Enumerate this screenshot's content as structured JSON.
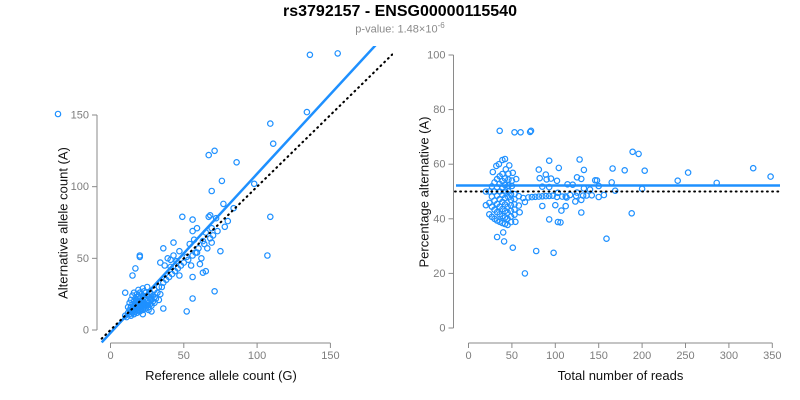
{
  "header": {
    "title": "rs3792157 - ENSG00000115540",
    "pvalue_prefix": "p-value: 1.48×10",
    "pvalue_exponent": "-6"
  },
  "colors": {
    "point_blue": "#1E90FF",
    "fit_line_blue": "#1E90FF",
    "reference_line_black": "#000000",
    "axis_line": "#8a8a8a",
    "tick_label": "#7d7d7d",
    "axis_title": "#111111",
    "subtitle_gray": "#8a8a8a",
    "title_black": "#000000"
  },
  "chart_data": [
    {
      "type": "scatter",
      "name": "allele-counts-scatter",
      "xlabel": "Reference allele count (G)",
      "ylabel": "Alternative allele count (A)",
      "xticks": [
        0,
        50,
        100,
        150
      ],
      "yticks": [
        0,
        50,
        100,
        150
      ],
      "xlim": [
        -9,
        190
      ],
      "ylim": [
        -10,
        193
      ],
      "grid": false,
      "legend": "none",
      "marker": "open-circle",
      "points_xy": [
        [
          10,
          10
        ],
        [
          11,
          9
        ],
        [
          12,
          12
        ],
        [
          12,
          16
        ],
        [
          13,
          11
        ],
        [
          13,
          14
        ],
        [
          13,
          19
        ],
        [
          14,
          10
        ],
        [
          14,
          13
        ],
        [
          14,
          16
        ],
        [
          14,
          21
        ],
        [
          15,
          12
        ],
        [
          15,
          15
        ],
        [
          15,
          18
        ],
        [
          15,
          24
        ],
        [
          16,
          11
        ],
        [
          16,
          14
        ],
        [
          16,
          17
        ],
        [
          16,
          20
        ],
        [
          16,
          26
        ],
        [
          17,
          13
        ],
        [
          17,
          16
        ],
        [
          17,
          19
        ],
        [
          17,
          22
        ],
        [
          18,
          12
        ],
        [
          18,
          15
        ],
        [
          18,
          18
        ],
        [
          18,
          21
        ],
        [
          18,
          25
        ],
        [
          19,
          14
        ],
        [
          19,
          17
        ],
        [
          19,
          20
        ],
        [
          19,
          23
        ],
        [
          19,
          28
        ],
        [
          20,
          13
        ],
        [
          20,
          16
        ],
        [
          20,
          19
        ],
        [
          20,
          22
        ],
        [
          20,
          26
        ],
        [
          21,
          15
        ],
        [
          21,
          18
        ],
        [
          21,
          21
        ],
        [
          21,
          25
        ],
        [
          22,
          11
        ],
        [
          22,
          14
        ],
        [
          22,
          17
        ],
        [
          22,
          20
        ],
        [
          22,
          24
        ],
        [
          22,
          29
        ],
        [
          23,
          16
        ],
        [
          23,
          19
        ],
        [
          23,
          23
        ],
        [
          23,
          27
        ],
        [
          24,
          15
        ],
        [
          24,
          18
        ],
        [
          24,
          22
        ],
        [
          24,
          26
        ],
        [
          25,
          17
        ],
        [
          25,
          20
        ],
        [
          25,
          24
        ],
        [
          25,
          30
        ],
        [
          26,
          14
        ],
        [
          26,
          16
        ],
        [
          26,
          19
        ],
        [
          26,
          23
        ],
        [
          27,
          18
        ],
        [
          27,
          22
        ],
        [
          27,
          26
        ],
        [
          28,
          13
        ],
        [
          28,
          17
        ],
        [
          28,
          21
        ],
        [
          28,
          25
        ],
        [
          29,
          20
        ],
        [
          29,
          24
        ],
        [
          30,
          19
        ],
        [
          30,
          23
        ],
        [
          30,
          28
        ],
        [
          31,
          22
        ],
        [
          10,
          26
        ],
        [
          15,
          38
        ],
        [
          17,
          43
        ],
        [
          20,
          51
        ],
        [
          20,
          52
        ],
        [
          32,
          26
        ],
        [
          33,
          21
        ],
        [
          33,
          30
        ],
        [
          34,
          25
        ],
        [
          34,
          47
        ],
        [
          35,
          30
        ],
        [
          36,
          15
        ],
        [
          36,
          33
        ],
        [
          36,
          57
        ],
        [
          37,
          45
        ],
        [
          38,
          35
        ],
        [
          39,
          50
        ],
        [
          40,
          37
        ],
        [
          41,
          44
        ],
        [
          41,
          49
        ],
        [
          42,
          39
        ],
        [
          43,
          52
        ],
        [
          43,
          61
        ],
        [
          44,
          41
        ],
        [
          45,
          48
        ],
        [
          46,
          43
        ],
        [
          47,
          38
        ],
        [
          47,
          55
        ],
        [
          48,
          45
        ],
        [
          49,
          79
        ],
        [
          50,
          47
        ],
        [
          52,
          13
        ],
        [
          52,
          51
        ],
        [
          53,
          49
        ],
        [
          54,
          60
        ],
        [
          55,
          45
        ],
        [
          56,
          22
        ],
        [
          56,
          37
        ],
        [
          56,
          52
        ],
        [
          56,
          69
        ],
        [
          56,
          77
        ],
        [
          57,
          63
        ],
        [
          58,
          54
        ],
        [
          59,
          54
        ],
        [
          59,
          71
        ],
        [
          60,
          57
        ],
        [
          61,
          46
        ],
        [
          62,
          50
        ],
        [
          63,
          40
        ],
        [
          63,
          62
        ],
        [
          64,
          60
        ],
        [
          65,
          41
        ],
        [
          65,
          68
        ],
        [
          66,
          57
        ],
        [
          67,
          79
        ],
        [
          67,
          122
        ],
        [
          68,
          64
        ],
        [
          68,
          80
        ],
        [
          69,
          61
        ],
        [
          69,
          71
        ],
        [
          69,
          97
        ],
        [
          70,
          66
        ],
        [
          71,
          27
        ],
        [
          71,
          125
        ],
        [
          72,
          78
        ],
        [
          73,
          69
        ],
        [
          75,
          55
        ],
        [
          76,
          104
        ],
        [
          77,
          88
        ],
        [
          78,
          72
        ],
        [
          80,
          76
        ],
        [
          84,
          85
        ],
        [
          86,
          117
        ],
        [
          98,
          102
        ],
        [
          107,
          52
        ],
        [
          109,
          79
        ],
        [
          109,
          144
        ],
        [
          111,
          130
        ],
        [
          134,
          152
        ],
        [
          136,
          192
        ],
        [
          155,
          193
        ]
      ],
      "fit_line": {
        "slope": 1.11,
        "intercept": -2,
        "style": "solid",
        "color": "#1E90FF"
      },
      "identity_line": {
        "slope": 1,
        "intercept": 0,
        "style": "dotted",
        "color": "#000000"
      }
    },
    {
      "type": "scatter",
      "name": "percentage-vs-coverage-scatter",
      "xlabel": "Total number of reads",
      "ylabel": "Percentage alternative (A)",
      "xticks": [
        0,
        50,
        100,
        150,
        200,
        250,
        300,
        350
      ],
      "yticks": [
        0,
        20,
        40,
        60,
        80,
        100
      ],
      "xlim": [
        -15,
        360
      ],
      "ylim": [
        -5.5,
        102
      ],
      "grid": false,
      "legend": "none",
      "marker": "open-circle",
      "points_derivation": "x = ref+alt, y = 100*alt/(ref+alt), from chart 1 points_xy",
      "mean_line": {
        "y": 52.2,
        "style": "solid",
        "color": "#1E90FF"
      },
      "null_line": {
        "y": 50,
        "style": "dotted",
        "color": "#000000"
      }
    }
  ],
  "stray_point": {
    "note": "small open circle rendered beside the 150 y-axis tick of the left plot"
  }
}
